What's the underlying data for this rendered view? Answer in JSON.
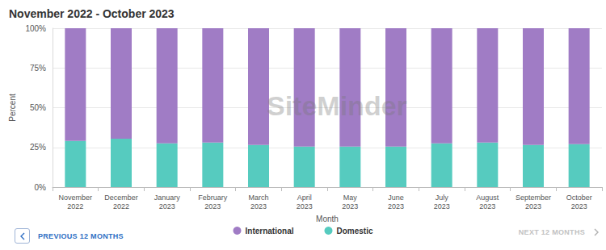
{
  "chart_data": {
    "type": "bar",
    "title": "November 2022 - October 2023",
    "x_label": "Month",
    "y_label": "Percent",
    "categories": [
      "November 2022",
      "December 2022",
      "January 2023",
      "February 2023",
      "March 2023",
      "April 2023",
      "May 2023",
      "June 2023",
      "July 2023",
      "August 2023",
      "September 2023",
      "October 2023"
    ],
    "series": [
      {
        "name": "International",
        "color": "#a07cc5",
        "values": [
          71,
          69.5,
          72.5,
          72,
          73.5,
          74.5,
          74.5,
          74.5,
          72.5,
          72,
          73.5,
          73
        ]
      },
      {
        "name": "Domestic",
        "color": "#56cbbf",
        "values": [
          29,
          30.5,
          27.5,
          28,
          26.5,
          25.5,
          25.5,
          25.5,
          27.5,
          28,
          26.5,
          27
        ]
      }
    ],
    "ylim": [
      0,
      100
    ],
    "yticks": [
      {
        "value": 0,
        "label": "0%"
      },
      {
        "value": 25,
        "label": "25%"
      },
      {
        "value": 50,
        "label": "50%"
      },
      {
        "value": 75,
        "label": "75%"
      },
      {
        "value": 100,
        "label": "100%"
      }
    ],
    "stacked": true,
    "grid": true,
    "legend": "bottom"
  },
  "watermark": "SiteMinder",
  "navigation": {
    "previous": "PREVIOUS 12 MONTHS",
    "next": "NEXT 12 MONTHS"
  }
}
